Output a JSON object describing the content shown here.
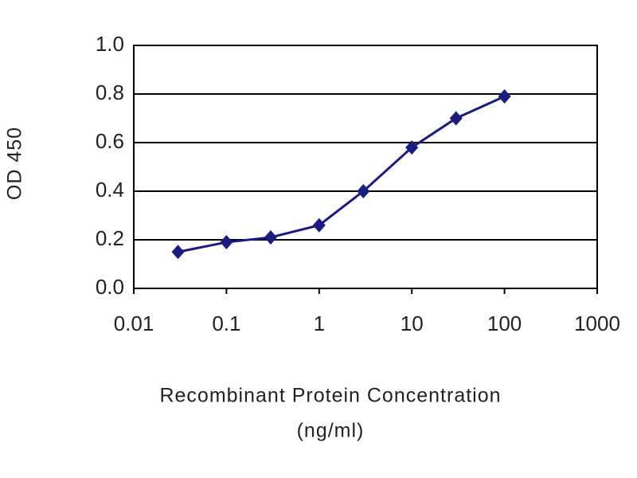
{
  "chart_data": {
    "type": "line",
    "ylabel": "OD 450",
    "xlabel": [
      "Recombinant  Protein Concentration",
      "(ng/ml)"
    ],
    "log_x": true,
    "x": [
      0.03,
      0.1,
      0.3,
      1,
      3,
      10,
      30,
      100
    ],
    "series": [
      {
        "color": "#1c1c80",
        "values": [
          0.15,
          0.19,
          0.21,
          0.26,
          0.4,
          0.58,
          0.7,
          0.79
        ]
      }
    ],
    "xlim": [
      0.01,
      1000
    ],
    "xticks": [
      0.01,
      0.1,
      1,
      10,
      100,
      1000
    ],
    "ylim": [
      0,
      1
    ],
    "yticks": [
      {
        "value": 0,
        "label": "0.0"
      },
      0.2,
      0.4,
      0.6,
      0.8,
      {
        "value": 1,
        "label": "1.0"
      }
    ],
    "grid": true
  }
}
